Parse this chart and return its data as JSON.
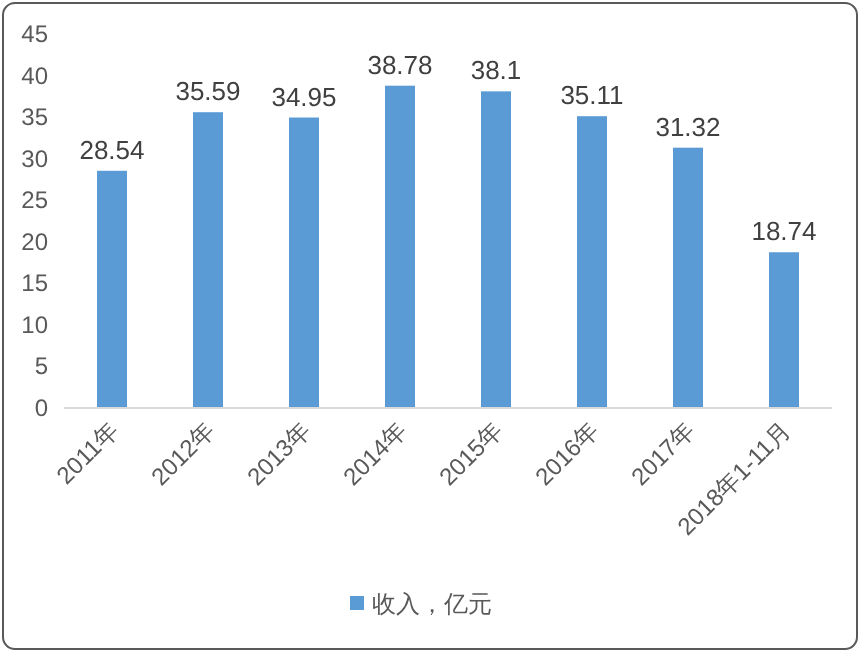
{
  "chart_data": {
    "type": "bar",
    "categories": [
      "2011年",
      "2012年",
      "2013年",
      "2014年",
      "2015年",
      "2016年",
      "2017年",
      "2018年1-11月"
    ],
    "series": [
      {
        "name": "收入，亿元",
        "color": "#5b9bd5",
        "values": [
          28.54,
          35.59,
          34.95,
          38.78,
          38.1,
          35.11,
          31.32,
          18.74
        ]
      }
    ],
    "ylim": [
      0,
      45
    ],
    "yticks": [
      0,
      5,
      10,
      15,
      20,
      25,
      30,
      35,
      40,
      45
    ],
    "data_labels": true,
    "legend": "bottom",
    "grid": false
  }
}
